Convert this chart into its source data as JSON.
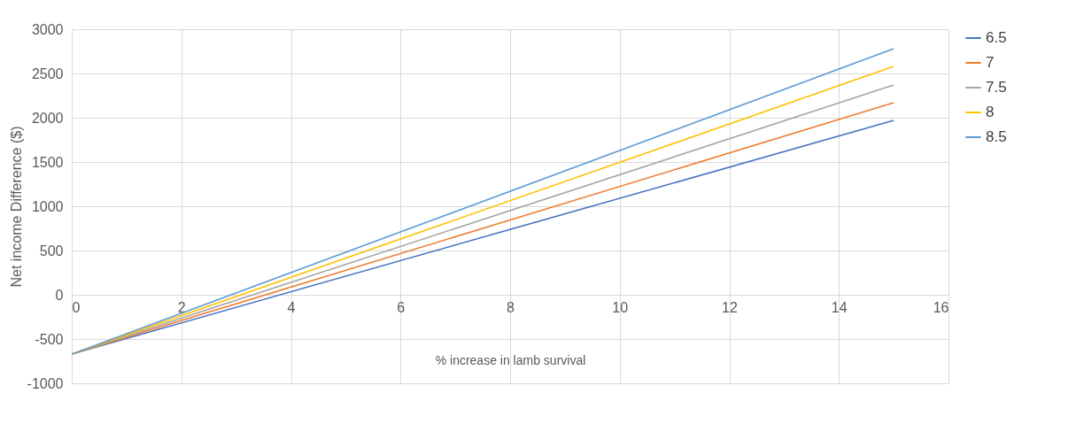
{
  "chart_data": {
    "type": "line",
    "xlabel": "% increase in lamb survival",
    "ylabel": "Net income Difference ($)",
    "x": [
      0,
      15
    ],
    "series": [
      {
        "name": "6.5",
        "color": "#4472c4",
        "values": [
          -670,
          1970
        ]
      },
      {
        "name": "7",
        "color": "#ed7d31",
        "values": [
          -670,
          2170
        ]
      },
      {
        "name": "7.5",
        "color": "#a5a5a5",
        "values": [
          -670,
          2370
        ]
      },
      {
        "name": "8",
        "color": "#ffc000",
        "values": [
          -670,
          2580
        ]
      },
      {
        "name": "8.5",
        "color": "#5b9bd5",
        "values": [
          -670,
          2780
        ]
      }
    ],
    "xlim": [
      0,
      16
    ],
    "xticks": [
      0,
      2,
      4,
      6,
      8,
      10,
      12,
      14,
      16
    ],
    "ylim": [
      -1000,
      3000
    ],
    "yticks": [
      -1000,
      -500,
      0,
      500,
      1000,
      1500,
      2000,
      2500,
      3000
    ],
    "grid": true,
    "legend": "right"
  }
}
